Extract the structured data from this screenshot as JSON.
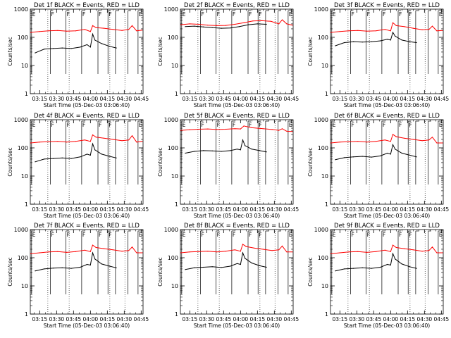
{
  "colors": {
    "events": "#000000",
    "lld": "#ff0000",
    "background": "#ffffff"
  },
  "chart_data": [
    {
      "type": "line",
      "title": "Det 1f BLACK = Events, RED = LLD",
      "xlabel": "Start Time (05-Dec-03 03:06:40)",
      "ylabel": "Counts/sec",
      "yscale": "log",
      "ylim": [
        1,
        1000
      ],
      "x_ticks": [
        "03:15",
        "03:30",
        "03:45",
        "04:00",
        "04:15",
        "04:30",
        "04:45"
      ],
      "y_ticks": [
        "1",
        "10",
        "100",
        "1000"
      ],
      "x_range": [
        "03:06:40",
        "04:46:40"
      ],
      "flag_letters": [
        "E",
        "F",
        "F",
        "F",
        "F",
        "F",
        "E"
      ],
      "series": [
        {
          "name": "Events",
          "color": "#000000",
          "x": [
            "03:11",
            "03:19",
            "03:27",
            "03:35",
            "03:43",
            "03:51",
            "03:57",
            "04:00",
            "04:02",
            "04:04",
            "04:10",
            "04:17",
            "04:23"
          ],
          "values": [
            28,
            38,
            40,
            42,
            40,
            45,
            55,
            45,
            130,
            80,
            60,
            48,
            42
          ]
        },
        {
          "name": "LLD",
          "color": "#ff0000",
          "x": [
            "03:07",
            "03:15",
            "03:23",
            "03:31",
            "03:39",
            "03:47",
            "03:55",
            "04:00",
            "04:02",
            "04:05",
            "04:12",
            "04:20",
            "04:28",
            "04:34",
            "04:37",
            "04:41",
            "04:46"
          ],
          "values": [
            150,
            160,
            170,
            175,
            165,
            170,
            190,
            160,
            260,
            220,
            210,
            190,
            175,
            190,
            260,
            170,
            180
          ]
        }
      ]
    },
    {
      "type": "line",
      "title": "Det 2f BLACK = Events, RED = LLD",
      "xlabel": "Start Time (05-Dec-03 03:06:40)",
      "ylabel": "Counts/sec",
      "yscale": "log",
      "ylim": [
        1,
        1000
      ],
      "x_ticks": [
        "03:15",
        "03:30",
        "03:45",
        "04:00",
        "04:15",
        "04:30",
        "04:45"
      ],
      "y_ticks": [
        "1",
        "10",
        "100",
        "1000"
      ],
      "x_range": [
        "03:06:40",
        "04:46:40"
      ],
      "flag_letters": [
        "E",
        "F",
        "F",
        "F",
        "F",
        "F",
        "E"
      ],
      "series": [
        {
          "name": "Events",
          "color": "#000000",
          "x": [
            "03:11",
            "03:19",
            "03:27",
            "03:35",
            "03:43",
            "03:51",
            "03:59",
            "04:07",
            "04:15",
            "04:23"
          ],
          "values": [
            240,
            250,
            235,
            220,
            210,
            215,
            240,
            280,
            300,
            290
          ]
        },
        {
          "name": "LLD",
          "color": "#ff0000",
          "x": [
            "03:07",
            "03:15",
            "03:23",
            "03:31",
            "03:39",
            "03:47",
            "03:55",
            "04:03",
            "04:11",
            "04:19",
            "04:27",
            "04:34",
            "04:37",
            "04:41",
            "04:46"
          ],
          "values": [
            280,
            300,
            290,
            270,
            260,
            265,
            290,
            330,
            380,
            390,
            370,
            300,
            420,
            300,
            270
          ]
        }
      ]
    },
    {
      "type": "line",
      "title": "Det 3f BLACK = Events, RED = LLD",
      "xlabel": "Start Time (05-Dec-03 03:06:40)",
      "ylabel": "Counts/sec",
      "yscale": "log",
      "ylim": [
        1,
        1000
      ],
      "x_ticks": [
        "03:15",
        "03:30",
        "03:45",
        "04:00",
        "04:15",
        "04:30",
        "04:45"
      ],
      "y_ticks": [
        "1",
        "10",
        "100",
        "1000"
      ],
      "x_range": [
        "03:06:40",
        "04:46:40"
      ],
      "flag_letters": [
        "E",
        "F",
        "F",
        "F",
        "F",
        "F",
        "E"
      ],
      "series": [
        {
          "name": "Events",
          "color": "#000000",
          "x": [
            "03:11",
            "03:19",
            "03:27",
            "03:35",
            "03:43",
            "03:51",
            "03:57",
            "04:00",
            "04:02",
            "04:04",
            "04:10",
            "04:17",
            "04:23"
          ],
          "values": [
            50,
            65,
            70,
            68,
            70,
            75,
            85,
            80,
            150,
            110,
            80,
            70,
            65
          ]
        },
        {
          "name": "LLD",
          "color": "#ff0000",
          "x": [
            "03:07",
            "03:15",
            "03:23",
            "03:31",
            "03:39",
            "03:47",
            "03:55",
            "04:00",
            "04:02",
            "04:05",
            "04:12",
            "04:20",
            "04:28",
            "04:34",
            "04:37",
            "04:41",
            "04:46"
          ],
          "values": [
            150,
            160,
            170,
            175,
            165,
            170,
            190,
            170,
            330,
            260,
            240,
            210,
            185,
            190,
            250,
            170,
            175
          ]
        }
      ]
    },
    {
      "type": "line",
      "title": "Det 4f BLACK = Events, RED = LLD",
      "xlabel": "Start Time (05-Dec-03 03:06:40)",
      "ylabel": "Counts/sec",
      "yscale": "log",
      "ylim": [
        1,
        1000
      ],
      "x_ticks": [
        "03:15",
        "03:30",
        "03:45",
        "04:00",
        "04:15",
        "04:30",
        "04:45"
      ],
      "y_ticks": [
        "1",
        "10",
        "100",
        "1000"
      ],
      "x_range": [
        "03:06:40",
        "04:46:40"
      ],
      "flag_letters": [
        "E",
        "F",
        "F",
        "F",
        "F",
        "F",
        "E"
      ],
      "series": [
        {
          "name": "Events",
          "color": "#000000",
          "x": [
            "03:11",
            "03:19",
            "03:27",
            "03:35",
            "03:43",
            "03:51",
            "03:57",
            "04:00",
            "04:02",
            "04:04",
            "04:10",
            "04:17",
            "04:23"
          ],
          "values": [
            32,
            40,
            42,
            44,
            42,
            48,
            60,
            55,
            140,
            85,
            60,
            50,
            44
          ]
        },
        {
          "name": "LLD",
          "color": "#ff0000",
          "x": [
            "03:07",
            "03:15",
            "03:23",
            "03:31",
            "03:39",
            "03:47",
            "03:55",
            "04:00",
            "04:02",
            "04:05",
            "04:12",
            "04:20",
            "04:28",
            "04:34",
            "04:37",
            "04:41",
            "04:46"
          ],
          "values": [
            150,
            160,
            165,
            170,
            160,
            170,
            190,
            170,
            290,
            240,
            220,
            200,
            180,
            190,
            270,
            160,
            170
          ]
        }
      ]
    },
    {
      "type": "line",
      "title": "Det 5f BLACK = Events, RED = LLD",
      "xlabel": "Start Time (05-Dec-03 03:06:40)",
      "ylabel": "Counts/sec",
      "yscale": "log",
      "ylim": [
        1,
        1000
      ],
      "x_ticks": [
        "03:15",
        "03:30",
        "03:45",
        "04:00",
        "04:15",
        "04:30",
        "04:45"
      ],
      "y_ticks": [
        "1",
        "10",
        "100",
        "1000"
      ],
      "x_range": [
        "03:06:40",
        "04:46:40"
      ],
      "flag_letters": [
        "E",
        "F",
        "F",
        "F",
        "F",
        "F",
        "E"
      ],
      "series": [
        {
          "name": "Events",
          "color": "#000000",
          "x": [
            "03:11",
            "03:19",
            "03:27",
            "03:35",
            "03:43",
            "03:51",
            "03:57",
            "04:00",
            "04:02",
            "04:04",
            "04:10",
            "04:17",
            "04:23"
          ],
          "values": [
            65,
            75,
            80,
            78,
            75,
            80,
            90,
            85,
            190,
            120,
            90,
            80,
            72
          ]
        },
        {
          "name": "LLD",
          "color": "#ff0000",
          "x": [
            "03:07",
            "03:15",
            "03:23",
            "03:31",
            "03:39",
            "03:47",
            "03:55",
            "04:00",
            "04:03",
            "04:10",
            "04:20",
            "04:28",
            "04:34",
            "04:37",
            "04:41",
            "04:46"
          ],
          "values": [
            420,
            440,
            460,
            470,
            450,
            460,
            480,
            470,
            600,
            520,
            480,
            450,
            420,
            480,
            390,
            380
          ]
        }
      ]
    },
    {
      "type": "line",
      "title": "Det 6f BLACK = Events, RED = LLD",
      "xlabel": "Start Time (05-Dec-03 03:06:40)",
      "ylabel": "Counts/sec",
      "yscale": "log",
      "ylim": [
        1,
        1000
      ],
      "x_ticks": [
        "03:15",
        "03:30",
        "03:45",
        "04:00",
        "04:15",
        "04:30",
        "04:45"
      ],
      "y_ticks": [
        "1",
        "10",
        "100",
        "1000"
      ],
      "x_range": [
        "03:06:40",
        "04:46:40"
      ],
      "flag_letters": [
        "E",
        "F",
        "F",
        "F",
        "F",
        "F",
        "E"
      ],
      "series": [
        {
          "name": "Events",
          "color": "#000000",
          "x": [
            "03:11",
            "03:19",
            "03:27",
            "03:35",
            "03:43",
            "03:51",
            "03:57",
            "04:00",
            "04:02",
            "04:04",
            "04:10",
            "04:17",
            "04:23"
          ],
          "values": [
            38,
            45,
            48,
            50,
            47,
            52,
            65,
            60,
            130,
            90,
            65,
            55,
            48
          ]
        },
        {
          "name": "LLD",
          "color": "#ff0000",
          "x": [
            "03:07",
            "03:15",
            "03:23",
            "03:31",
            "03:39",
            "03:47",
            "03:55",
            "04:00",
            "04:02",
            "04:05",
            "04:12",
            "04:20",
            "04:28",
            "04:34",
            "04:37",
            "04:41",
            "04:46"
          ],
          "values": [
            150,
            160,
            165,
            170,
            160,
            170,
            190,
            170,
            300,
            250,
            220,
            200,
            180,
            190,
            240,
            150,
            150
          ]
        }
      ]
    },
    {
      "type": "line",
      "title": "Det 7f BLACK = Events, RED = LLD",
      "xlabel": "Start Time (05-Dec-03 03:06:40)",
      "ylabel": "Counts/sec",
      "yscale": "log",
      "ylim": [
        1,
        1000
      ],
      "x_ticks": [
        "03:15",
        "03:30",
        "03:45",
        "04:00",
        "04:15",
        "04:30",
        "04:45"
      ],
      "y_ticks": [
        "1",
        "10",
        "100",
        "1000"
      ],
      "x_range": [
        "03:06:40",
        "04:46:40"
      ],
      "flag_letters": [
        "E",
        "F",
        "F",
        "F",
        "F",
        "F",
        "E"
      ],
      "series": [
        {
          "name": "Events",
          "color": "#000000",
          "x": [
            "03:11",
            "03:19",
            "03:27",
            "03:35",
            "03:43",
            "03:51",
            "03:57",
            "04:00",
            "04:02",
            "04:04",
            "04:10",
            "04:17",
            "04:23"
          ],
          "values": [
            34,
            40,
            43,
            44,
            42,
            46,
            58,
            55,
            150,
            90,
            60,
            50,
            44
          ]
        },
        {
          "name": "LLD",
          "color": "#ff0000",
          "x": [
            "03:07",
            "03:15",
            "03:23",
            "03:31",
            "03:39",
            "03:47",
            "03:55",
            "04:00",
            "04:02",
            "04:05",
            "04:12",
            "04:20",
            "04:28",
            "04:34",
            "04:37",
            "04:41",
            "04:46"
          ],
          "values": [
            140,
            150,
            160,
            165,
            155,
            165,
            185,
            165,
            280,
            230,
            210,
            190,
            170,
            180,
            240,
            150,
            150
          ]
        }
      ]
    },
    {
      "type": "line",
      "title": "Det 8f BLACK = Events, RED = LLD",
      "xlabel": "Start Time (05-Dec-03 03:06:40)",
      "ylabel": "Counts/sec",
      "yscale": "log",
      "ylim": [
        1,
        1000
      ],
      "x_ticks": [
        "03:15",
        "03:30",
        "03:45",
        "04:00",
        "04:15",
        "04:30",
        "04:45"
      ],
      "y_ticks": [
        "1",
        "10",
        "100",
        "1000"
      ],
      "x_range": [
        "03:06:40",
        "04:46:40"
      ],
      "flag_letters": [
        "E",
        "F",
        "F",
        "F",
        "F",
        "F",
        "E"
      ],
      "series": [
        {
          "name": "Events",
          "color": "#000000",
          "x": [
            "03:11",
            "03:19",
            "03:27",
            "03:35",
            "03:43",
            "03:51",
            "03:57",
            "04:00",
            "04:02",
            "04:04",
            "04:10",
            "04:17",
            "04:23"
          ],
          "values": [
            38,
            44,
            46,
            48,
            45,
            50,
            62,
            58,
            150,
            95,
            65,
            52,
            46
          ]
        },
        {
          "name": "LLD",
          "color": "#ff0000",
          "x": [
            "03:07",
            "03:15",
            "03:23",
            "03:31",
            "03:39",
            "03:47",
            "03:55",
            "04:00",
            "04:02",
            "04:05",
            "04:12",
            "04:20",
            "04:28",
            "04:34",
            "04:37",
            "04:41",
            "04:46"
          ],
          "values": [
            150,
            160,
            165,
            170,
            160,
            170,
            190,
            170,
            300,
            250,
            220,
            200,
            180,
            190,
            260,
            160,
            160
          ]
        }
      ]
    },
    {
      "type": "line",
      "title": "Det 9f BLACK = Events, RED = LLD",
      "xlabel": "Start Time (05-Dec-03 03:06:40)",
      "ylabel": "Counts/sec",
      "yscale": "log",
      "ylim": [
        1,
        1000
      ],
      "x_ticks": [
        "03:15",
        "03:30",
        "03:45",
        "04:00",
        "04:15",
        "04:30",
        "04:45"
      ],
      "y_ticks": [
        "1",
        "10",
        "100",
        "1000"
      ],
      "x_range": [
        "03:06:40",
        "04:46:40"
      ],
      "flag_letters": [
        "E",
        "F",
        "F",
        "F",
        "F",
        "F",
        "E"
      ],
      "series": [
        {
          "name": "Events",
          "color": "#000000",
          "x": [
            "03:11",
            "03:19",
            "03:27",
            "03:35",
            "03:43",
            "03:51",
            "03:57",
            "04:00",
            "04:02",
            "04:04",
            "04:10",
            "04:17",
            "04:23"
          ],
          "values": [
            34,
            40,
            42,
            44,
            42,
            46,
            58,
            55,
            140,
            90,
            60,
            48,
            42
          ]
        },
        {
          "name": "LLD",
          "color": "#ff0000",
          "x": [
            "03:07",
            "03:15",
            "03:23",
            "03:31",
            "03:39",
            "03:47",
            "03:55",
            "04:00",
            "04:02",
            "04:05",
            "04:12",
            "04:20",
            "04:28",
            "04:34",
            "04:37",
            "04:41",
            "04:46"
          ],
          "values": [
            140,
            150,
            160,
            165,
            155,
            165,
            185,
            165,
            280,
            230,
            210,
            190,
            170,
            180,
            240,
            150,
            150
          ]
        }
      ]
    }
  ]
}
